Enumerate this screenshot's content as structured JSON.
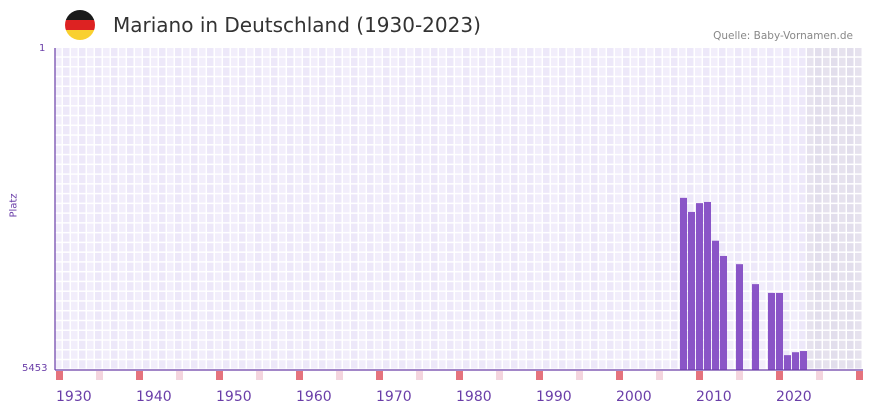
{
  "header": {
    "title": "Mariano in Deutschland (1930-2023)",
    "source": "Quelle: Baby-Vornamen.de",
    "flag_colors": [
      "#1a1a1a",
      "#dd2222",
      "#f9d030"
    ]
  },
  "chart_data": {
    "type": "bar",
    "title": "Mariano in Deutschland (1930-2023)",
    "ylabel": "Platz",
    "xlabel": "",
    "ylim": [
      1,
      5453
    ],
    "y_inverted": true,
    "ytick_labels": [
      "1",
      "5453"
    ],
    "xlim": [
      1930,
      2030
    ],
    "xtick_labels": [
      "1930",
      "1940",
      "1950",
      "1960",
      "1970",
      "1980",
      "1990",
      "2000",
      "2010",
      "2020"
    ],
    "grid": true,
    "future_shaded_from": 2024,
    "bar_color": "#8a55c7",
    "x": [
      2008,
      2009,
      2010,
      2011,
      2012,
      2013,
      2015,
      2017,
      2019,
      2020,
      2021,
      2022,
      2023
    ],
    "values": [
      2520,
      2760,
      2610,
      2590,
      3250,
      3510,
      3650,
      3990,
      4140,
      4140,
      5200,
      5150,
      5130
    ]
  }
}
